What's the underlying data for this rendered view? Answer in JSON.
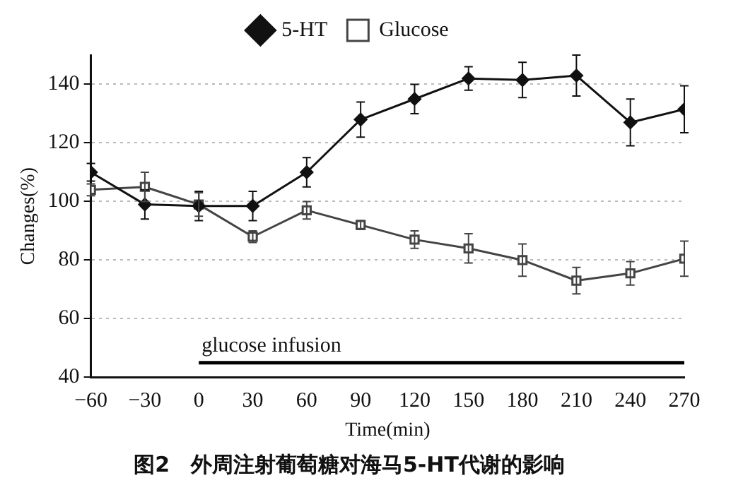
{
  "chart_data": {
    "type": "line",
    "title": "图2　外周注射葡萄糖对海马5-HT代谢的影响",
    "xlabel": "Time(min)",
    "ylabel": "Changes(%)",
    "x": [
      -60,
      -30,
      0,
      30,
      60,
      90,
      120,
      150,
      180,
      210,
      240,
      270
    ],
    "series": [
      {
        "name": "5-HT",
        "color": "#111111",
        "marker": "diamond",
        "values": [
          110,
          99,
          98.5,
          98.5,
          110,
          128,
          135,
          142,
          141.5,
          143,
          127,
          131.5
        ],
        "errors": [
          3,
          5,
          5,
          5,
          5,
          6,
          5,
          4,
          6,
          7,
          8,
          8
        ]
      },
      {
        "name": "Glucose",
        "color": "#444444",
        "marker": "square",
        "values": [
          104,
          105,
          99,
          88,
          97,
          92,
          87,
          84,
          80,
          73,
          75.5,
          80.5
        ],
        "errors": [
          2,
          5,
          4,
          2,
          3,
          1.5,
          3,
          5,
          5.5,
          4.5,
          4,
          6
        ]
      },
      {
        "type": "line",
        "color": "#000000",
        "marker": "none",
        "x": [
          0,
          270
        ],
        "values": [
          45,
          45
        ]
      }
    ],
    "annotations": [
      {
        "text": "glucose infusion",
        "x": 0,
        "y": 47
      }
    ],
    "xlim": [
      -60,
      270
    ],
    "xticks": [
      -60,
      -30,
      0,
      30,
      60,
      90,
      120,
      150,
      180,
      210,
      240,
      270
    ],
    "ylim": [
      40,
      150
    ],
    "yticks": [
      40,
      60,
      80,
      100,
      120,
      140
    ],
    "grid": "y",
    "legend": "top"
  }
}
